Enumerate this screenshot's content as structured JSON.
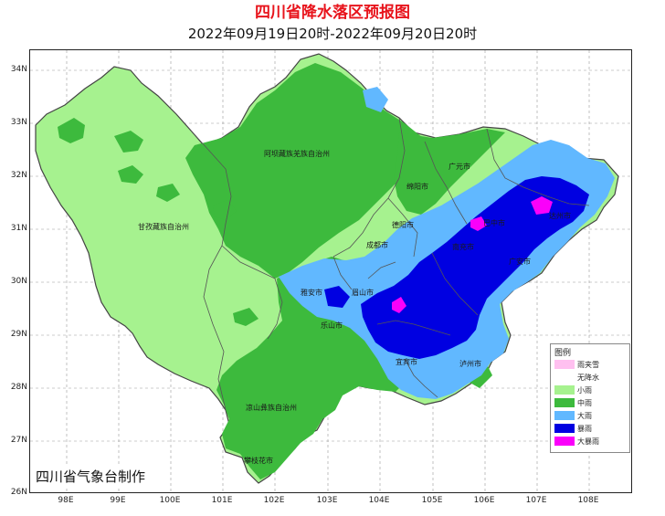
{
  "header": {
    "title": "四川省降水落区预报图",
    "subtitle": "2022年09月19日20时-2022年09月20日20时"
  },
  "axes": {
    "lat_labels": [
      "34N",
      "33N",
      "32N",
      "31N",
      "30N",
      "29N",
      "28N",
      "27N",
      "26N"
    ],
    "lon_labels": [
      "98E",
      "99E",
      "100E",
      "101E",
      "102E",
      "103E",
      "104E",
      "105E",
      "106E",
      "107E",
      "108E"
    ]
  },
  "credit": "四川省气象台制作",
  "legend": {
    "title": "图例",
    "items": [
      {
        "label": "雨夹雪",
        "color": "#ffc0f0"
      },
      {
        "label": "无降水",
        "color": "#ffffff"
      },
      {
        "label": "小雨",
        "color": "#a6f28f"
      },
      {
        "label": "中雨",
        "color": "#3dba3d"
      },
      {
        "label": "大雨",
        "color": "#61b8ff"
      },
      {
        "label": "暴雨",
        "color": "#0000e1"
      },
      {
        "label": "大暴雨",
        "color": "#fa00fa"
      }
    ]
  },
  "cities": {
    "aba": "阿坝藏族羌族自治州",
    "ganzi": "甘孜藏族自治州",
    "liangshan": "凉山彝族自治州",
    "guangyuan": "广元市",
    "mianyang": "绵阳市",
    "deyang": "德阳市",
    "chengdu": "成都市",
    "yaan": "雅安市",
    "meishan": "眉山市",
    "leshan": "乐山市",
    "panzhihua": "攀枝花市",
    "luzhou": "泸州市",
    "bazhong": "巴中市",
    "dazhou": "达州市",
    "nanchong": "南充市",
    "guangan": "广安市",
    "yibin": "宜宾市"
  }
}
